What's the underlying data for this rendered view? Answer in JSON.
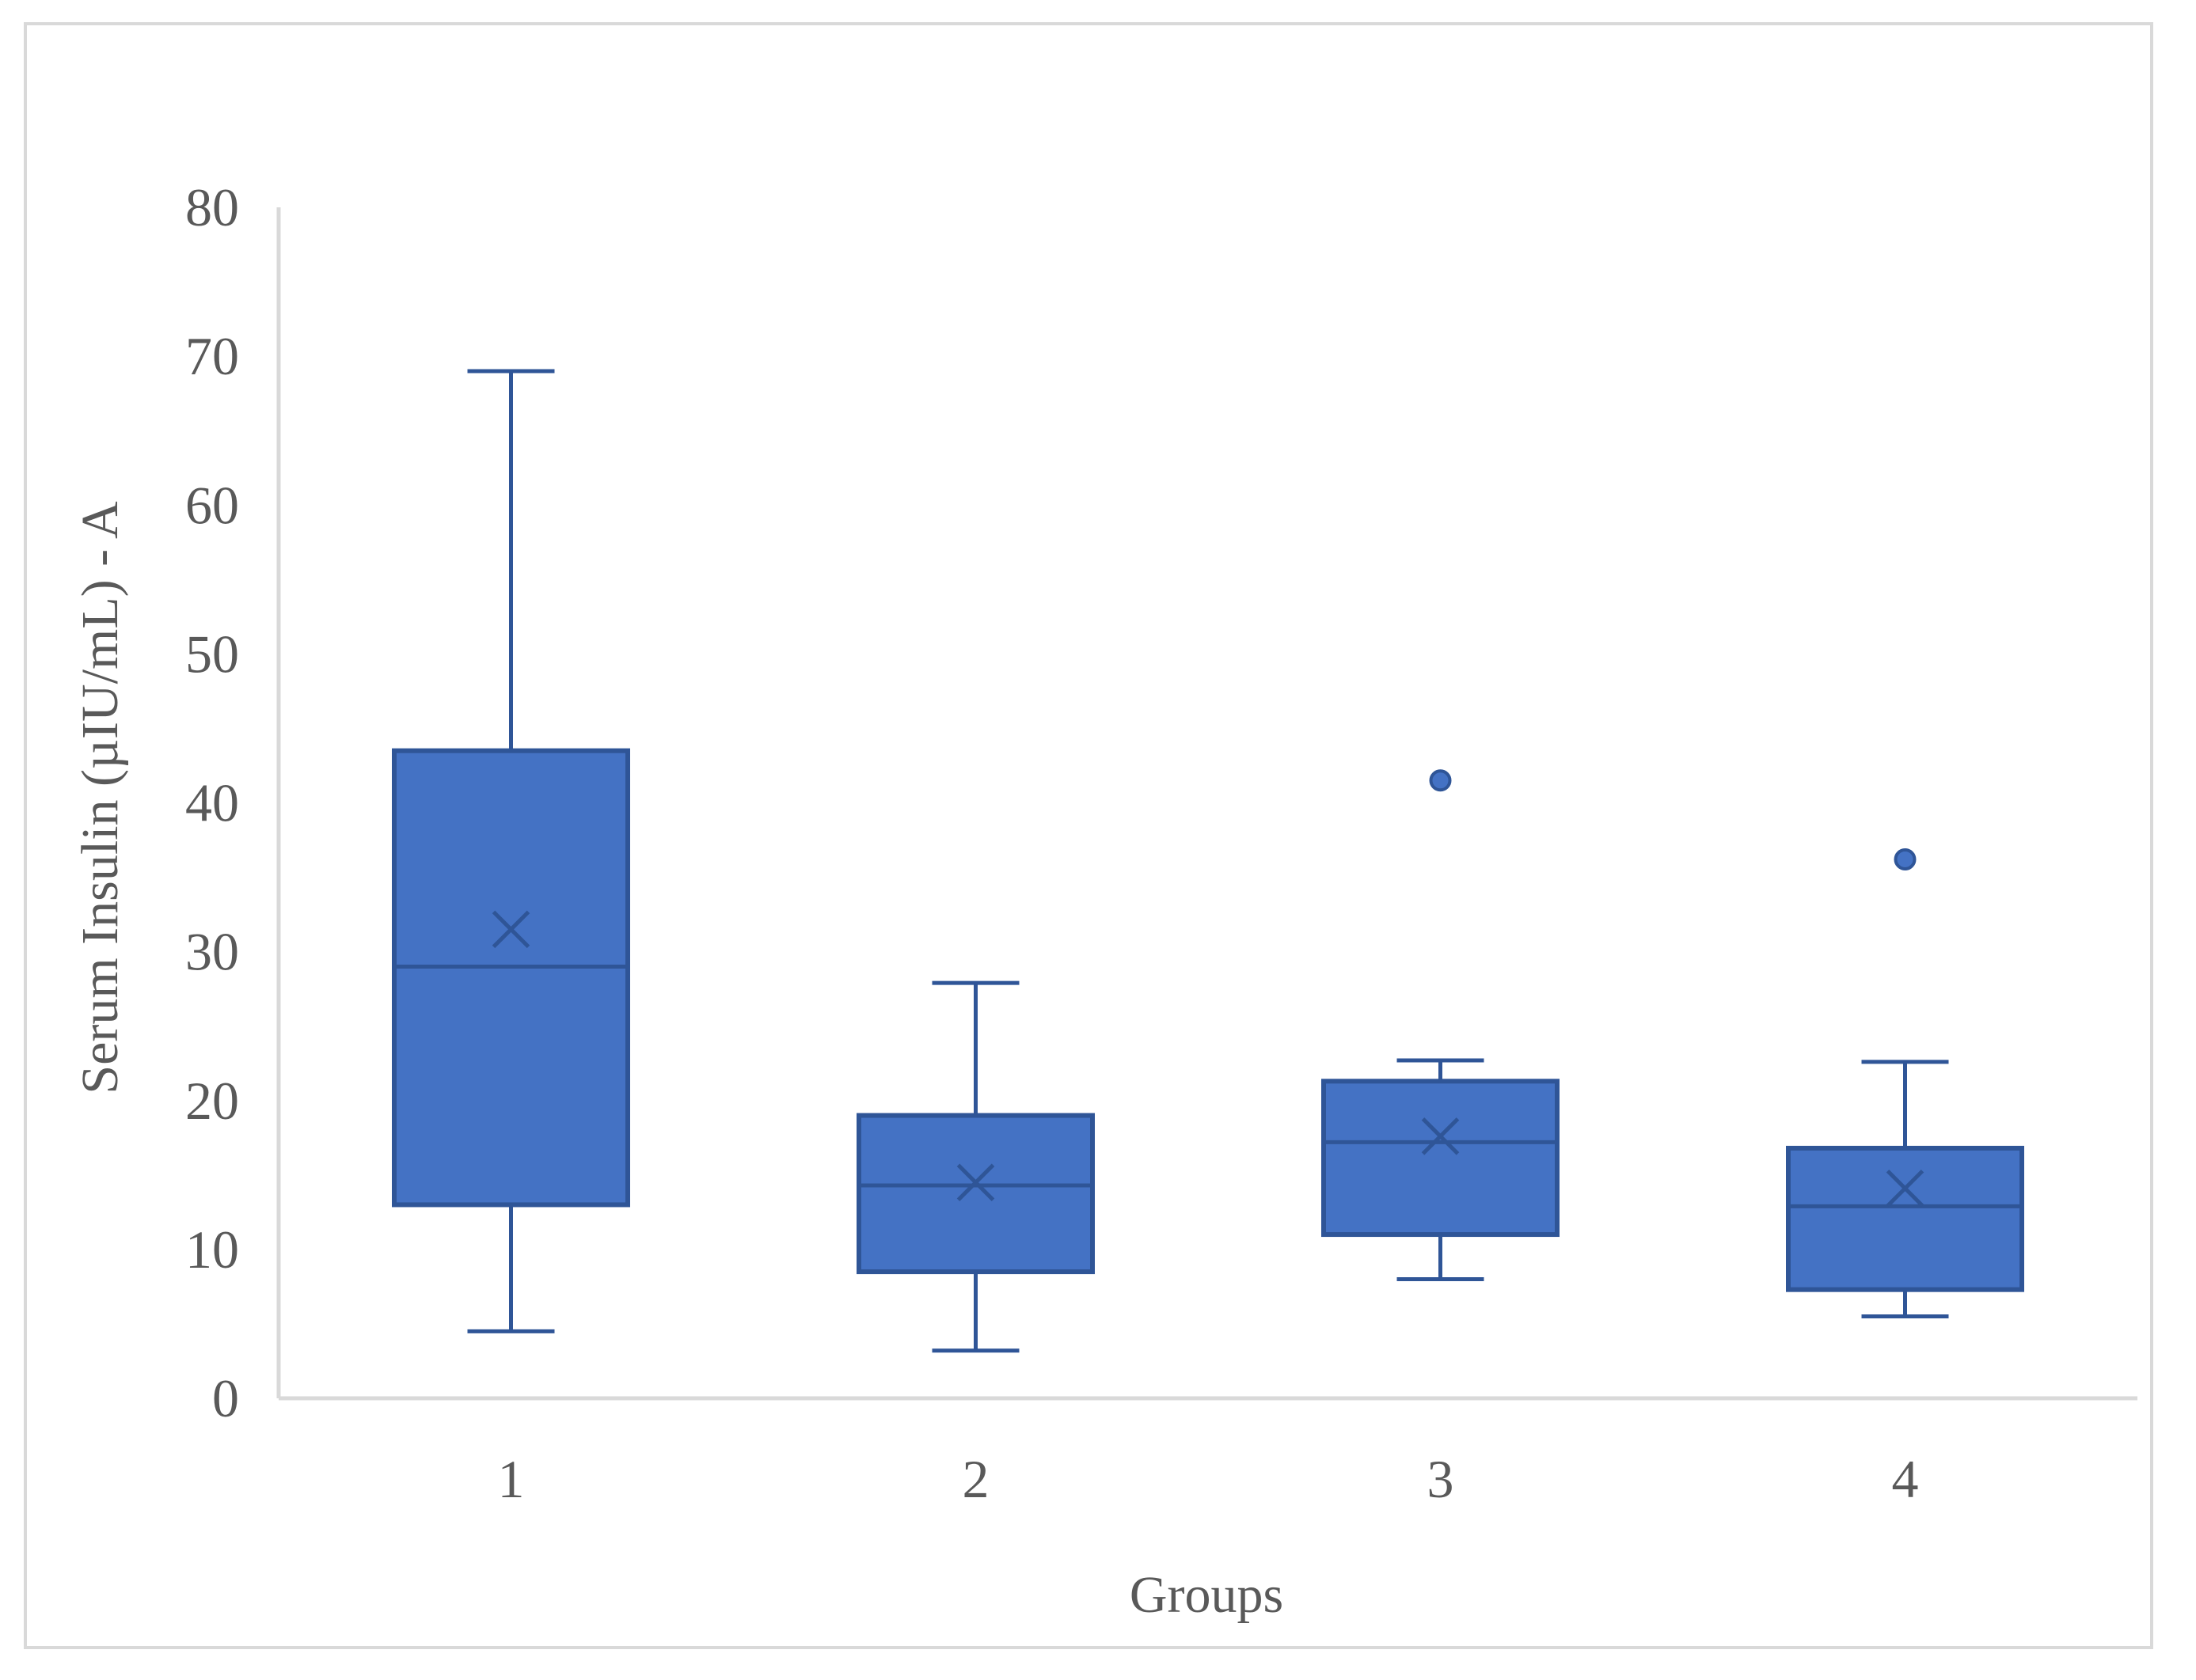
{
  "chart_data": {
    "type": "box",
    "title": "",
    "xlabel": "Groups",
    "ylabel": "Serum Insulin (µIU/mL) - A",
    "ylim": [
      0,
      80
    ],
    "yticks": [
      0,
      10,
      20,
      30,
      40,
      50,
      60,
      70,
      80
    ],
    "categories": [
      "1",
      "2",
      "3",
      "4"
    ],
    "grid": false,
    "legend": "none",
    "boxes": [
      {
        "category": "1",
        "whisker_low": 4.5,
        "q1": 13.0,
        "median": 29.0,
        "q3": 43.5,
        "whisker_high": 69.0,
        "mean": 31.5,
        "outliers": []
      },
      {
        "category": "2",
        "whisker_low": 3.2,
        "q1": 8.5,
        "median": 14.3,
        "q3": 19.0,
        "whisker_high": 27.9,
        "mean": 14.5,
        "outliers": []
      },
      {
        "category": "3",
        "whisker_low": 8.0,
        "q1": 11.0,
        "median": 17.2,
        "q3": 21.3,
        "whisker_high": 22.7,
        "mean": 17.6,
        "outliers": [
          41.5
        ]
      },
      {
        "category": "4",
        "whisker_low": 5.5,
        "q1": 7.3,
        "median": 12.9,
        "q3": 16.8,
        "whisker_high": 22.6,
        "mean": 14.1,
        "outliers": [
          36.2
        ]
      }
    ],
    "colors": {
      "box_fill": "#4472c4",
      "box_stroke": "#2f5597",
      "axis": "#d9d9d9",
      "text": "#595959"
    }
  }
}
